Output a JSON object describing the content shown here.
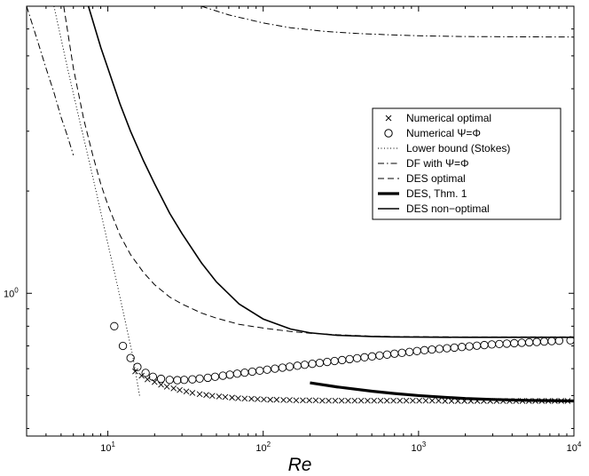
{
  "chart_data": {
    "type": "line",
    "title": "",
    "xlabel": "Re",
    "ylabel": "",
    "xscale": "log",
    "yscale": "log",
    "xlim": [
      3,
      10000
    ],
    "ylim": [
      0.38,
      7.0
    ],
    "grid": false,
    "legend_position": "center-right",
    "x_ticks": [
      {
        "value": 10,
        "base": "10",
        "exp": "1"
      },
      {
        "value": 100,
        "base": "10",
        "exp": "2"
      },
      {
        "value": 1000,
        "base": "10",
        "exp": "3"
      },
      {
        "value": 10000,
        "base": "10",
        "exp": "4"
      }
    ],
    "y_ticks": [
      {
        "value": 1,
        "base": "10",
        "exp": "0"
      }
    ],
    "series": [
      {
        "name": "Numerical optimal",
        "style": "x-marker",
        "color": "#000000",
        "x": [
          15,
          16.5,
          18,
          20,
          22,
          24,
          26.5,
          29,
          32,
          35,
          39,
          43,
          47,
          52,
          57,
          63,
          69,
          76,
          84,
          92,
          101,
          111,
          122,
          135,
          148,
          163,
          180,
          198,
          218,
          240,
          264,
          291,
          320,
          352,
          388,
          427,
          470,
          517,
          569,
          626,
          689,
          758,
          834,
          918,
          1010,
          1112,
          1223,
          1346,
          1481,
          1630,
          1793,
          1973,
          2171,
          2389,
          2629,
          2893,
          3183,
          3503,
          3854,
          4241,
          4667,
          5135,
          5650,
          6217,
          6841,
          7527,
          8283,
          9114
        ],
        "y": [
          0.589,
          0.572,
          0.558,
          0.548,
          0.538,
          0.531,
          0.525,
          0.519,
          0.514,
          0.509,
          0.505,
          0.502,
          0.499,
          0.497,
          0.495,
          0.493,
          0.491,
          0.49,
          0.489,
          0.488,
          0.487,
          0.486,
          0.486,
          0.485,
          0.485,
          0.484,
          0.484,
          0.484,
          0.484,
          0.483,
          0.483,
          0.483,
          0.483,
          0.483,
          0.483,
          0.483,
          0.483,
          0.483,
          0.483,
          0.483,
          0.483,
          0.483,
          0.483,
          0.483,
          0.483,
          0.483,
          0.483,
          0.483,
          0.482,
          0.482,
          0.482,
          0.482,
          0.482,
          0.482,
          0.482,
          0.482,
          0.482,
          0.482,
          0.482,
          0.482,
          0.482,
          0.482,
          0.482,
          0.482,
          0.482,
          0.482,
          0.482,
          0.482
        ]
      },
      {
        "name": "Numerical Ψ=Φ",
        "style": "circle-marker",
        "color": "#000000",
        "x": [
          11,
          12.5,
          14,
          15.5,
          17.5,
          19.5,
          22,
          25,
          28,
          31,
          35,
          39,
          44,
          49,
          55,
          61,
          68,
          76,
          85,
          95,
          106,
          119,
          133,
          148,
          166,
          185,
          207,
          231,
          258,
          288,
          322,
          360,
          402,
          449,
          502,
          561,
          627,
          700,
          782,
          874,
          977,
          1091,
          1219,
          1362,
          1522,
          1700,
          1900,
          2123,
          2372,
          2650,
          2961,
          3309,
          3697,
          4131,
          4616,
          5157,
          5762,
          6438,
          7193,
          8037,
          9500
        ],
        "y": [
          0.8,
          0.7,
          0.645,
          0.607,
          0.583,
          0.568,
          0.56,
          0.556,
          0.555,
          0.556,
          0.558,
          0.561,
          0.564,
          0.568,
          0.572,
          0.576,
          0.58,
          0.584,
          0.588,
          0.592,
          0.596,
          0.6,
          0.604,
          0.608,
          0.612,
          0.616,
          0.62,
          0.624,
          0.628,
          0.632,
          0.636,
          0.64,
          0.644,
          0.648,
          0.652,
          0.656,
          0.66,
          0.664,
          0.668,
          0.672,
          0.676,
          0.68,
          0.683,
          0.686,
          0.689,
          0.692,
          0.695,
          0.698,
          0.701,
          0.704,
          0.707,
          0.709,
          0.711,
          0.713,
          0.715,
          0.717,
          0.719,
          0.721,
          0.723,
          0.725,
          0.727
        ]
      },
      {
        "name": "Lower bound (Stokes)",
        "style": "dotted",
        "color": "#000000",
        "x": [
          4.5,
          5.5,
          6.5,
          7.5,
          8.5,
          10,
          11.5,
          13,
          14.5,
          16
        ],
        "y": [
          7.0,
          4.6,
          3.3,
          2.5,
          1.95,
          1.4,
          1.06,
          0.82,
          0.65,
          0.5
        ]
      },
      {
        "name": "DF with Ψ=Φ",
        "style": "dashdot",
        "color": "#000000",
        "x": [
          3,
          3.5,
          4,
          4.5,
          5,
          5.5,
          6,
          40,
          60,
          100,
          150,
          250,
          400,
          700,
          1000,
          2000,
          4000,
          10000
        ],
        "y": [
          7.0,
          5.6,
          4.6,
          3.9,
          3.3,
          2.9,
          2.55,
          7.0,
          6.6,
          6.25,
          6.05,
          5.9,
          5.82,
          5.76,
          5.73,
          5.7,
          5.69,
          5.68
        ]
      },
      {
        "name": "DES optimal",
        "style": "dashed",
        "color": "#000000",
        "x": [
          5.2,
          6,
          7,
          8,
          9,
          10,
          12,
          14,
          17,
          20,
          25,
          30,
          40,
          50,
          70,
          100,
          150,
          200,
          300,
          500,
          700,
          1000,
          2000,
          4000,
          10000
        ],
        "y": [
          7.0,
          4.6,
          3.25,
          2.55,
          2.1,
          1.82,
          1.48,
          1.3,
          1.15,
          1.06,
          0.975,
          0.93,
          0.875,
          0.845,
          0.81,
          0.79,
          0.772,
          0.763,
          0.755,
          0.748,
          0.746,
          0.745,
          0.744,
          0.744,
          0.744
        ]
      },
      {
        "name": "DES, Thm. 1",
        "style": "thick-solid",
        "color": "#000000",
        "x": [
          200,
          300,
          500,
          700,
          1000,
          1500,
          2000,
          3000,
          5000,
          7000,
          10000
        ],
        "y": [
          0.545,
          0.53,
          0.515,
          0.507,
          0.5,
          0.494,
          0.49,
          0.487,
          0.484,
          0.483,
          0.482
        ]
      },
      {
        "name": "DES non−optimal",
        "style": "solid",
        "color": "#000000",
        "x": [
          7.5,
          9,
          10,
          12,
          14,
          17,
          20,
          25,
          30,
          40,
          50,
          70,
          100,
          150,
          200,
          300,
          500,
          700,
          1000,
          2000,
          5000,
          10000
        ],
        "y": [
          7.0,
          5.3,
          4.6,
          3.6,
          3.0,
          2.45,
          2.1,
          1.72,
          1.5,
          1.23,
          1.08,
          0.93,
          0.84,
          0.785,
          0.765,
          0.752,
          0.746,
          0.744,
          0.743,
          0.742,
          0.742,
          0.742
        ]
      }
    ]
  }
}
